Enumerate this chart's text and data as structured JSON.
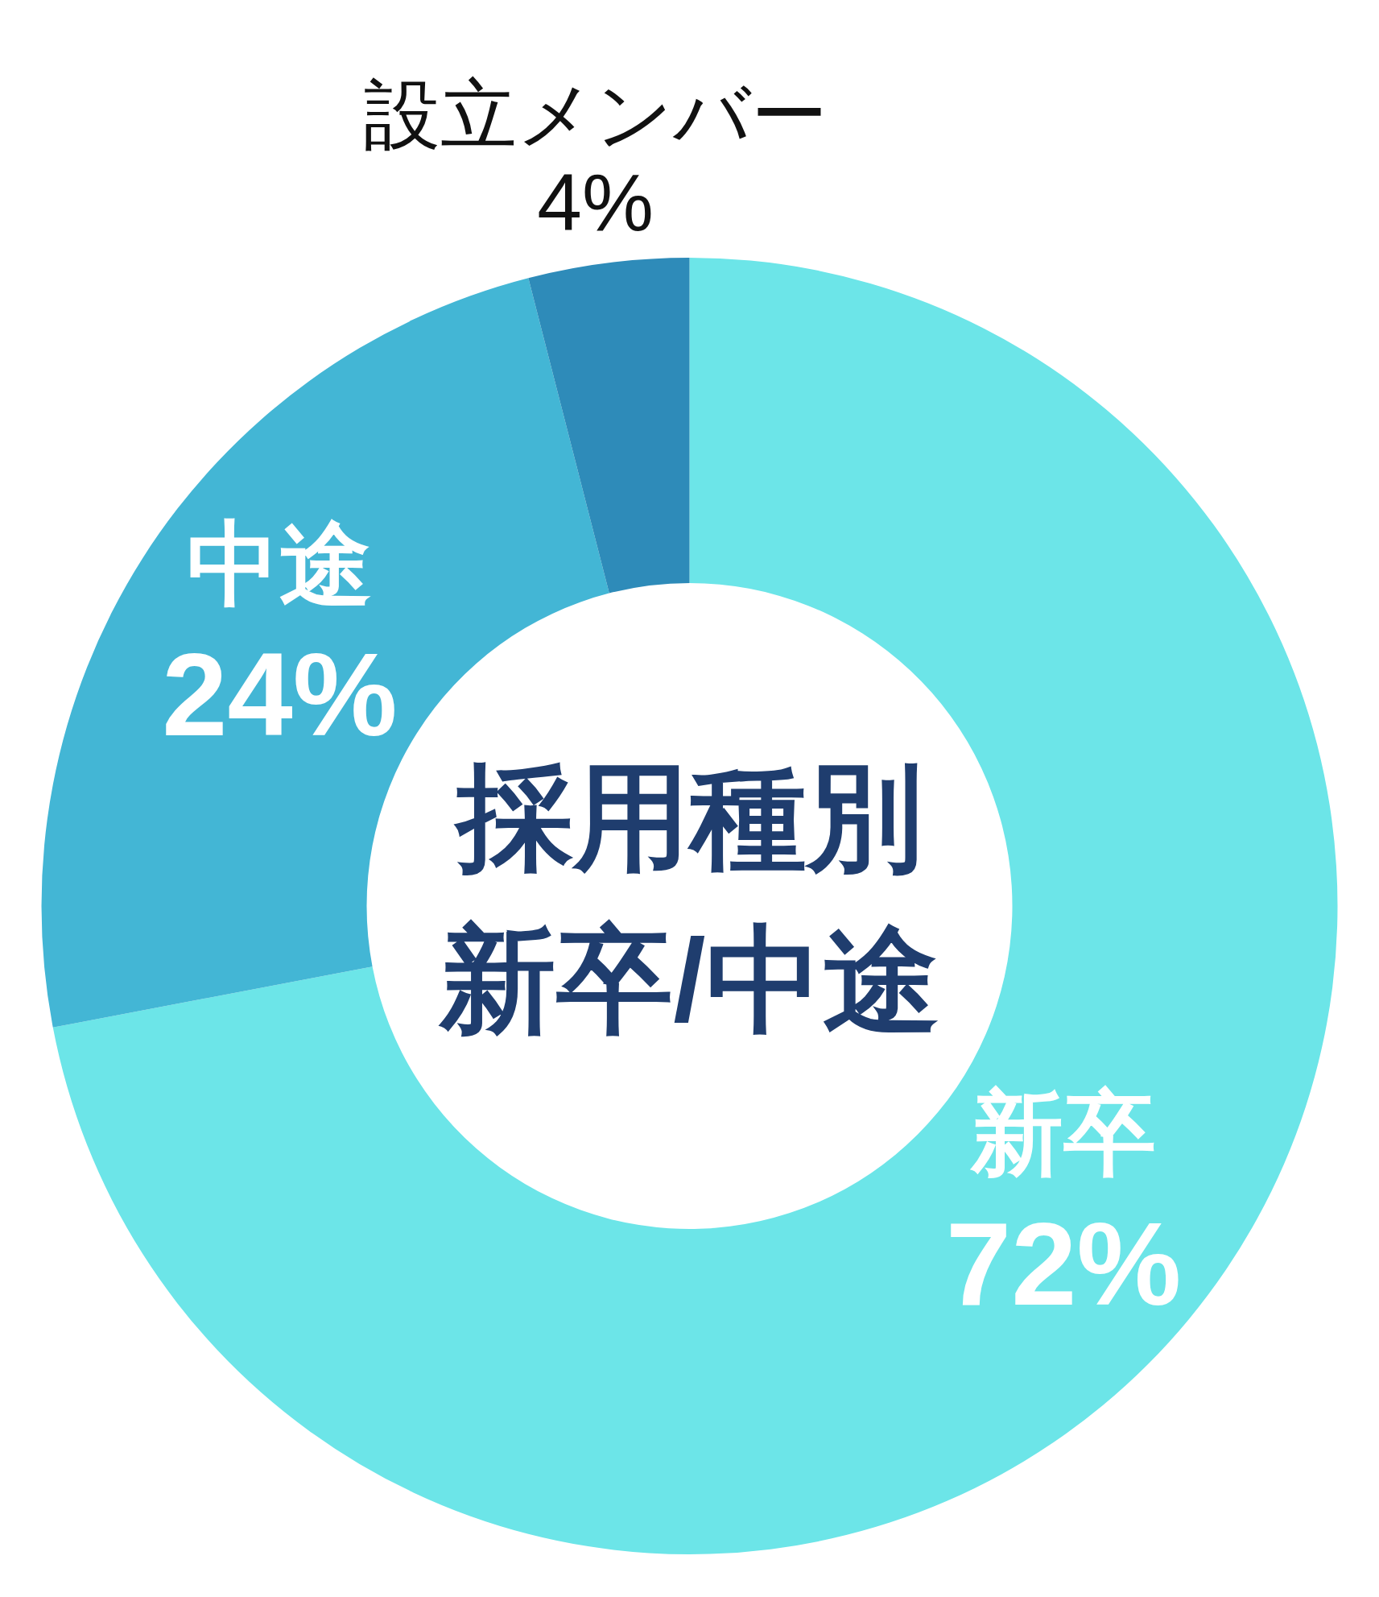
{
  "chart_data": {
    "type": "donut",
    "title": "採用種別",
    "subtitle": "新卒/中途",
    "categories": [
      "新卒",
      "中途",
      "設立メンバー"
    ],
    "values": [
      72,
      24,
      4
    ],
    "colors": [
      "#6ce5e8",
      "#43b6d5",
      "#2e8bb9"
    ],
    "value_labels": [
      "72%",
      "24%",
      "4%"
    ]
  }
}
